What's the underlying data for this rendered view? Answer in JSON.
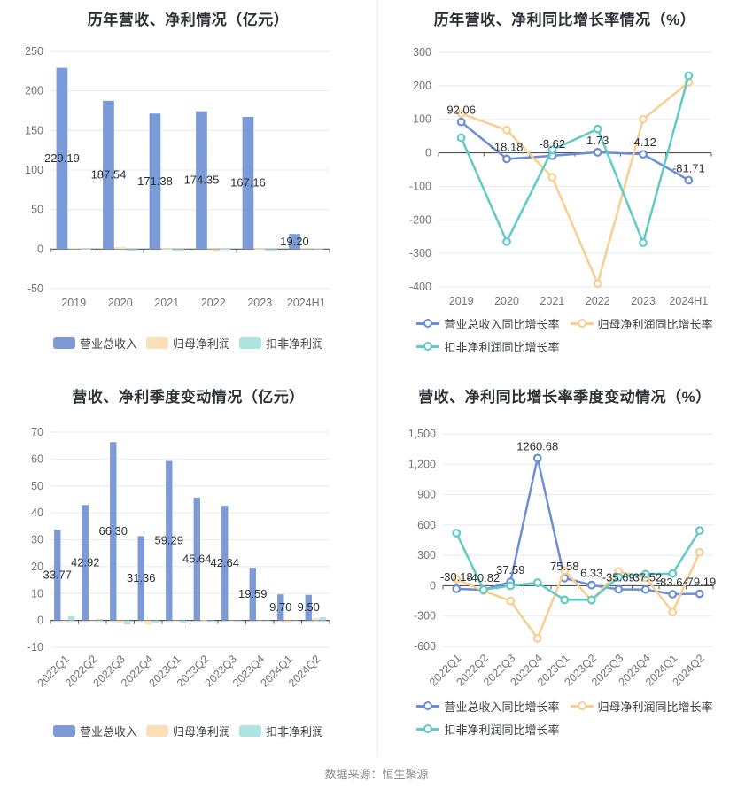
{
  "footer": {
    "text": "数据来源：恒生聚源"
  },
  "colors": {
    "bar_blue": "#7c9ad6",
    "bar_orange": "#fbdfb6",
    "bar_teal": "#abe4e0",
    "line_blue": "#6b8ed6",
    "line_orange": "#f9ce8e",
    "line_teal": "#5fcbc7",
    "grid": "#e4eaf4",
    "zero_line": "#50555c",
    "tick_text": "#70747b",
    "data_label": "#2d3035",
    "title": "#2e3238"
  },
  "chart_data": [
    {
      "type": "bar",
      "title": "历年营收、净利情况（亿元）",
      "xlabel": "",
      "ylabel": "",
      "categories": [
        "2019",
        "2020",
        "2021",
        "2022",
        "2023",
        "2024H1"
      ],
      "series": [
        {
          "name": "营业总收入",
          "color": "#7c9ad6",
          "values": [
            229.19,
            187.54,
            171.38,
            174.35,
            167.16,
            19.2
          ]
        },
        {
          "name": "归母净利润",
          "color": "#fbdfb6",
          "values": [
            1.5,
            2.5,
            0.5,
            -2.5,
            0.3,
            -0.3
          ]
        },
        {
          "name": "扣非净利润",
          "color": "#abe4e0",
          "values": [
            0.3,
            -2.0,
            -1.5,
            0.3,
            -1.5,
            0.8
          ]
        }
      ],
      "label_series": 0,
      "labels": [
        "229.19",
        "187.54",
        "171.38",
        "174.35",
        "167.16",
        "19.20"
      ],
      "ylim": [
        -50,
        250
      ],
      "ytick_step": 50,
      "grid_on": true,
      "legend_position": "bottom",
      "layout": {
        "plot": {
          "l": 57,
          "t": 58,
          "r": 372,
          "b": 326
        },
        "rotate_x": false,
        "comma": false
      }
    },
    {
      "type": "line",
      "title": "历年营收、净利同比增长率情况（%）",
      "xlabel": "",
      "ylabel": "",
      "categories": [
        "2019",
        "2020",
        "2021",
        "2022",
        "2023",
        "2024H1"
      ],
      "series": [
        {
          "name": "营业总收入同比增长率",
          "color": "#6b8ed6",
          "values": [
            92.06,
            -18.18,
            -8.62,
            1.73,
            -4.12,
            -81.71
          ]
        },
        {
          "name": "归母净利润同比增长率",
          "color": "#f9ce8e",
          "values": [
            117,
            68,
            -73,
            -390,
            100,
            210
          ]
        },
        {
          "name": "扣非净利润同比增长率",
          "color": "#5fcbc7",
          "values": [
            45,
            -265,
            9,
            71,
            -268,
            230
          ]
        }
      ],
      "label_series": 0,
      "labels": [
        "92.06",
        "-18.18",
        "-8.62",
        "1.73",
        "-4.12",
        "-81.71"
      ],
      "ylim": [
        -400,
        300
      ],
      "ytick_step": 100,
      "grid_on": true,
      "legend_position": "bottom",
      "layout": {
        "plot": {
          "l": 70,
          "t": 59,
          "r": 378,
          "b": 324
        },
        "rotate_x": false,
        "comma": false
      }
    },
    {
      "type": "bar",
      "title": "营收、净利季度变动情况（亿元）",
      "xlabel": "",
      "ylabel": "",
      "categories": [
        "2022Q1",
        "2022Q2",
        "2022Q3",
        "2022Q4",
        "2023Q1",
        "2023Q2",
        "2023Q3",
        "2023Q4",
        "2024Q1",
        "2024Q2"
      ],
      "series": [
        {
          "name": "营业总收入",
          "color": "#7c9ad6",
          "values": [
            33.77,
            42.92,
            66.3,
            31.36,
            59.29,
            45.64,
            42.64,
            19.59,
            9.7,
            9.5
          ]
        },
        {
          "name": "归母净利润",
          "color": "#fbdfb6",
          "values": [
            -0.5,
            -0.3,
            -1.0,
            -1.5,
            -0.2,
            0.1,
            -0.1,
            -0.5,
            -0.8,
            0.8
          ]
        },
        {
          "name": "扣非净利润",
          "color": "#abe4e0",
          "values": [
            1.5,
            0.5,
            -1.5,
            -1.0,
            -0.8,
            -0.5,
            -0.4,
            -0.1,
            -0.2,
            1.2
          ]
        }
      ],
      "label_series": 0,
      "labels": [
        "33.77",
        "42.92",
        "66.30",
        "31.36",
        "59.29",
        "45.64",
        "42.64",
        "19.59",
        "9.70",
        "9.50"
      ],
      "ylim": [
        -10,
        70
      ],
      "ytick_step": 10,
      "grid_on": true,
      "legend_position": "bottom",
      "layout": {
        "plot": {
          "l": 57,
          "t": 68,
          "r": 372,
          "b": 311
        },
        "rotate_x": true,
        "comma": false
      }
    },
    {
      "type": "line",
      "title": "营收、净利同比增长率季度变动情况（%）",
      "xlabel": "",
      "ylabel": "",
      "categories": [
        "2022Q1",
        "2022Q2",
        "2022Q3",
        "2022Q4",
        "2023Q1",
        "2023Q2",
        "2023Q3",
        "2023Q4",
        "2024Q1",
        "2024Q2"
      ],
      "series": [
        {
          "name": "营业总收入同比增长率",
          "color": "#6b8ed6",
          "values": [
            -30.18,
            -40.82,
            37.59,
            1260.68,
            75.58,
            6.33,
            -35.69,
            -37.52,
            -83.64,
            -79.19
          ]
        },
        {
          "name": "归母净利润同比增长率",
          "color": "#f9ce8e",
          "values": [
            65,
            -50,
            -150,
            -520,
            150,
            -145,
            140,
            80,
            -260,
            330
          ]
        },
        {
          "name": "扣非净利润同比增长率",
          "color": "#5fcbc7",
          "values": [
            520,
            -40,
            0,
            30,
            -140,
            -140,
            85,
            115,
            120,
            545
          ]
        }
      ],
      "label_series": 0,
      "labels": [
        "-30.18",
        "-40.82",
        "37.59",
        "1260.68",
        "75.58",
        "6.33",
        "-35.69",
        "-37.52",
        "-83.64",
        "-79.19"
      ],
      "ylim": [
        -600,
        1500
      ],
      "ytick_step": 300,
      "grid_on": true,
      "legend_position": "bottom",
      "layout": {
        "plot": {
          "l": 75,
          "t": 70,
          "r": 380,
          "b": 310
        },
        "rotate_x": true,
        "comma": true
      }
    }
  ]
}
